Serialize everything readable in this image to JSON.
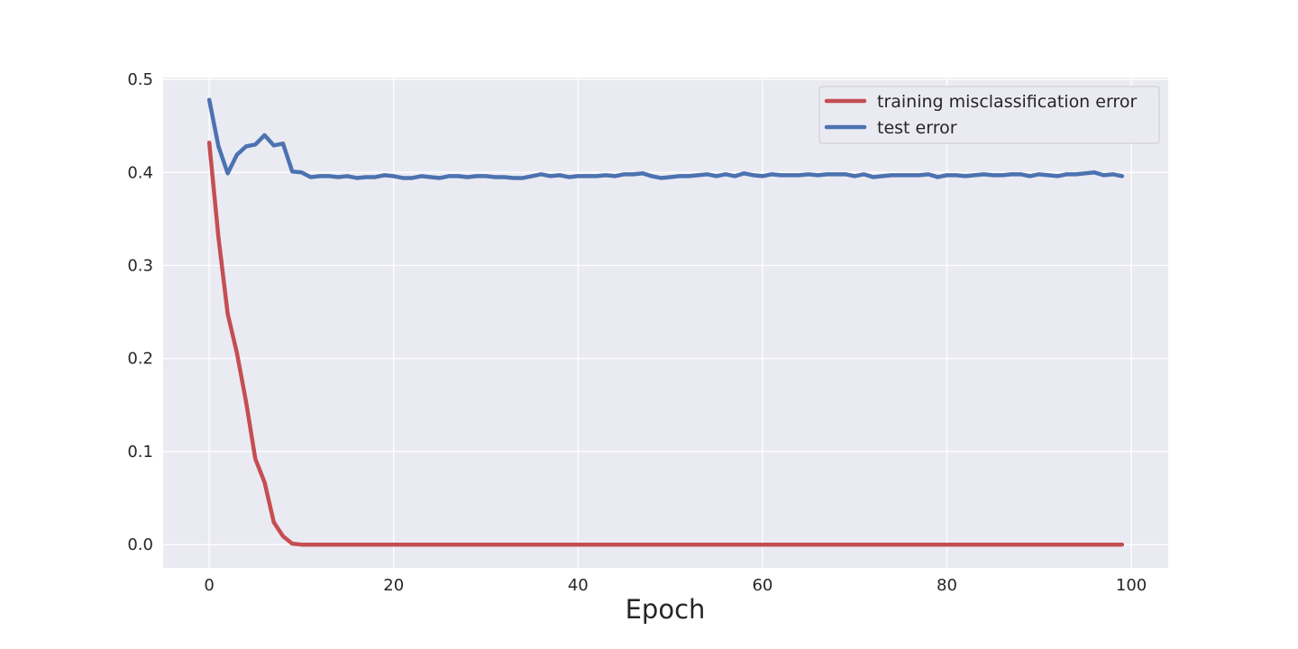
{
  "chart_data": {
    "type": "line",
    "title": "",
    "xlabel": "Epoch",
    "ylabel": "",
    "xlim": [
      -5,
      104
    ],
    "ylim": [
      -0.025,
      0.502
    ],
    "xticks": [
      0,
      20,
      40,
      60,
      80,
      100
    ],
    "yticks": [
      0.0,
      0.1,
      0.2,
      0.3,
      0.4,
      0.5
    ],
    "xtick_labels": [
      "0",
      "20",
      "40",
      "60",
      "80",
      "100"
    ],
    "ytick_labels": [
      "0.0",
      "0.1",
      "0.2",
      "0.3",
      "0.4",
      "0.5"
    ],
    "grid": true,
    "legend_position": "top-right",
    "background_color": "#eaeaf2",
    "series": [
      {
        "name": "training misclassification error",
        "color": "#c44e52",
        "x_start": 0,
        "x_step": 1,
        "values": [
          0.432,
          0.33,
          0.248,
          0.206,
          0.153,
          0.092,
          0.067,
          0.024,
          0.009,
          0.001,
          0.0,
          0.0,
          0.0,
          0.0,
          0.0,
          0.0,
          0.0,
          0.0,
          0.0,
          0.0,
          0.0,
          0.0,
          0.0,
          0.0,
          0.0,
          0.0,
          0.0,
          0.0,
          0.0,
          0.0,
          0.0,
          0.0,
          0.0,
          0.0,
          0.0,
          0.0,
          0.0,
          0.0,
          0.0,
          0.0,
          0.0,
          0.0,
          0.0,
          0.0,
          0.0,
          0.0,
          0.0,
          0.0,
          0.0,
          0.0,
          0.0,
          0.0,
          0.0,
          0.0,
          0.0,
          0.0,
          0.0,
          0.0,
          0.0,
          0.0,
          0.0,
          0.0,
          0.0,
          0.0,
          0.0,
          0.0,
          0.0,
          0.0,
          0.0,
          0.0,
          0.0,
          0.0,
          0.0,
          0.0,
          0.0,
          0.0,
          0.0,
          0.0,
          0.0,
          0.0,
          0.0,
          0.0,
          0.0,
          0.0,
          0.0,
          0.0,
          0.0,
          0.0,
          0.0,
          0.0,
          0.0,
          0.0,
          0.0,
          0.0,
          0.0,
          0.0,
          0.0,
          0.0,
          0.0,
          0.0
        ]
      },
      {
        "name": "test error",
        "color": "#4c72b0",
        "x_start": 0,
        "x_step": 1,
        "values": [
          0.478,
          0.428,
          0.399,
          0.419,
          0.428,
          0.43,
          0.44,
          0.429,
          0.431,
          0.401,
          0.4,
          0.395,
          0.396,
          0.396,
          0.395,
          0.396,
          0.394,
          0.395,
          0.395,
          0.397,
          0.396,
          0.394,
          0.394,
          0.396,
          0.395,
          0.394,
          0.396,
          0.396,
          0.395,
          0.396,
          0.396,
          0.395,
          0.395,
          0.394,
          0.394,
          0.396,
          0.398,
          0.396,
          0.397,
          0.395,
          0.396,
          0.396,
          0.396,
          0.397,
          0.396,
          0.398,
          0.398,
          0.399,
          0.396,
          0.394,
          0.395,
          0.396,
          0.396,
          0.397,
          0.398,
          0.396,
          0.398,
          0.396,
          0.399,
          0.397,
          0.396,
          0.398,
          0.397,
          0.397,
          0.397,
          0.398,
          0.397,
          0.398,
          0.398,
          0.398,
          0.396,
          0.398,
          0.395,
          0.396,
          0.397,
          0.397,
          0.397,
          0.397,
          0.398,
          0.395,
          0.397,
          0.397,
          0.396,
          0.397,
          0.398,
          0.397,
          0.397,
          0.398,
          0.398,
          0.396,
          0.398,
          0.397,
          0.396,
          0.398,
          0.398,
          0.399,
          0.4,
          0.397,
          0.398,
          0.396
        ]
      }
    ]
  }
}
